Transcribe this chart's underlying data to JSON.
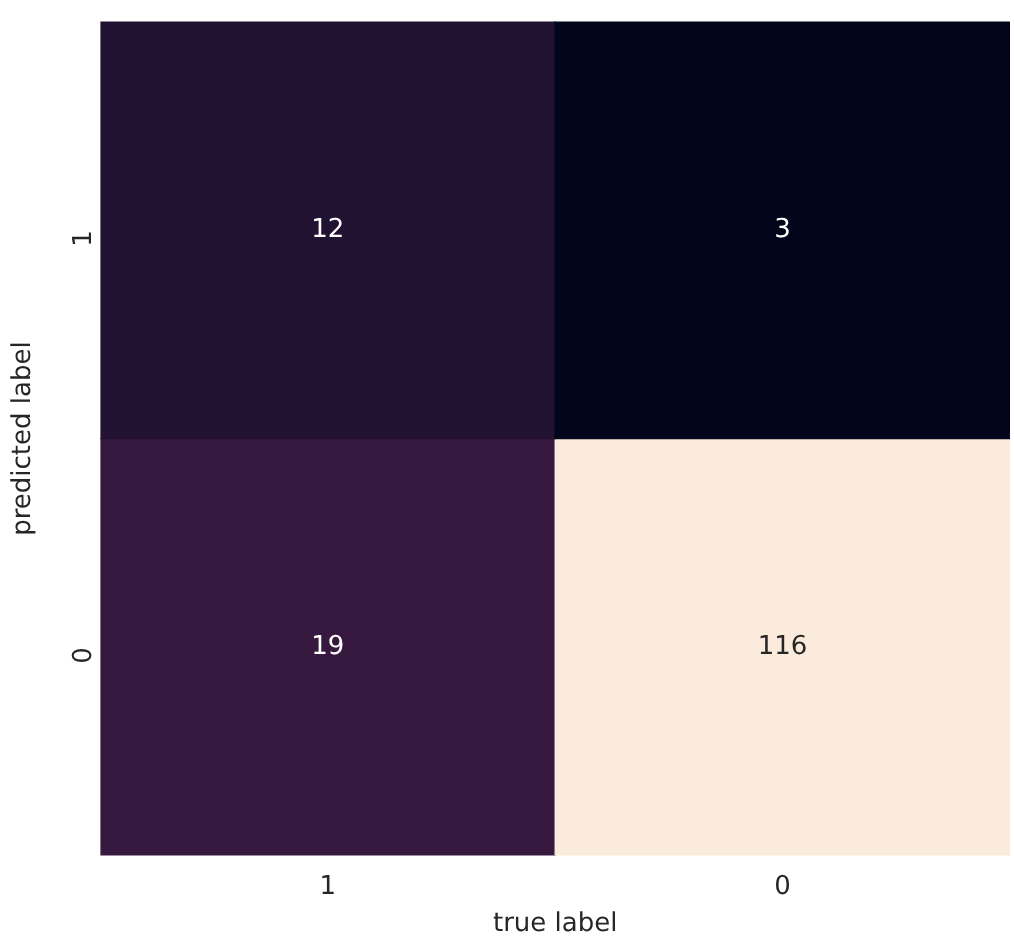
{
  "chart_data": {
    "type": "heatmap",
    "xlabel": "true label",
    "ylabel": "predicted label",
    "categories": [
      "1",
      "0"
    ],
    "y_categories": [
      "1",
      "0"
    ],
    "cells": [
      [
        12,
        3
      ],
      [
        19,
        116
      ]
    ],
    "data_labels": true
  }
}
